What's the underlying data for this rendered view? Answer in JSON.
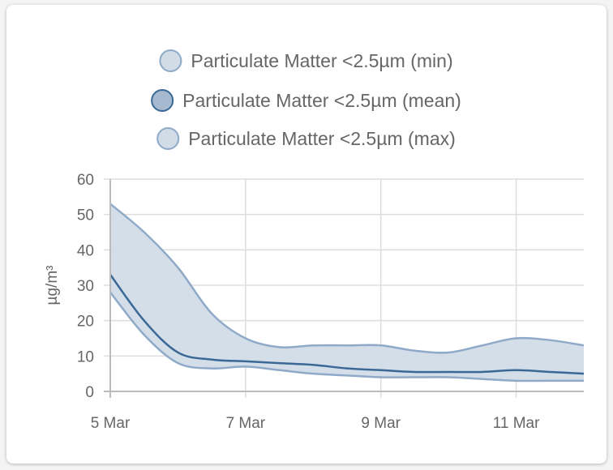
{
  "chart_data": {
    "type": "area",
    "xlabel": "",
    "ylabel": "µg/m³",
    "ylim": [
      0,
      60
    ],
    "yticks": [
      "0",
      "10",
      "20",
      "30",
      "40",
      "50",
      "60"
    ],
    "xlim": [
      "5 Mar",
      "12 Mar"
    ],
    "xticks": [
      "5 Mar",
      "7 Mar",
      "9 Mar",
      "11 Mar"
    ],
    "grid": true,
    "legend_placement": "top",
    "x": [
      5,
      5.5,
      6,
      6.5,
      7,
      7.5,
      8,
      8.5,
      9,
      9.5,
      10,
      10.5,
      11,
      11.5,
      12
    ],
    "series": [
      {
        "name": "Particulate Matter <2.5µm (min)",
        "color": "#8fa9c8",
        "fill": "#d1dce7",
        "values": [
          28,
          16,
          8,
          6.5,
          7,
          6,
          5,
          4.5,
          4,
          4,
          4,
          3.5,
          3,
          3,
          3
        ]
      },
      {
        "name": "Particulate Matter <2.5µm (mean)",
        "color": "#3b6897",
        "fill": "#a5b9d1",
        "values": [
          33,
          20,
          11,
          9,
          8.5,
          8,
          7.5,
          6.5,
          6,
          5.5,
          5.5,
          5.5,
          6,
          5.5,
          5
        ]
      },
      {
        "name": "Particulate Matter <2.5µm (max)",
        "color": "#8fa9c8",
        "fill": "#d1dce7",
        "values": [
          53,
          45,
          35,
          22,
          15,
          12.5,
          13,
          13,
          13,
          11.5,
          11,
          13,
          15,
          14.5,
          13
        ]
      }
    ]
  }
}
